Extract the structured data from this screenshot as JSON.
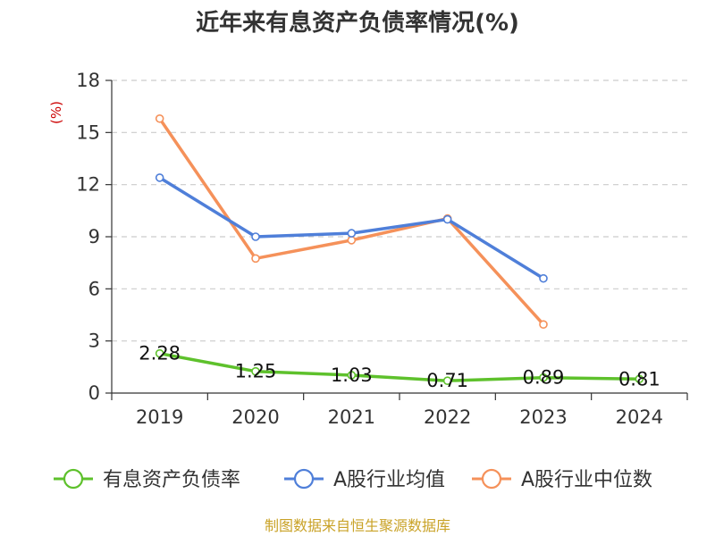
{
  "chart_data": {
    "type": "line",
    "title": "近年来有息资产负债率情况(%)",
    "ylabel": "(%)",
    "categories": [
      "2019",
      "2020",
      "2021",
      "2022",
      "2023",
      "2024"
    ],
    "ylim": [
      0,
      18
    ],
    "yticks": [
      0,
      3,
      6,
      9,
      12,
      15,
      18
    ],
    "grid": true,
    "legend_position": "bottom",
    "series": [
      {
        "name": "有息资产负债率",
        "color": "#5ec12c",
        "values": [
          2.28,
          1.25,
          1.03,
          0.71,
          0.89,
          0.81
        ],
        "labels": [
          "2.28",
          "1.25",
          "1.03",
          "0.71",
          "0.89",
          "0.81"
        ]
      },
      {
        "name": "A股行业均值",
        "color": "#4f7fd9",
        "values": [
          12.4,
          9.0,
          9.2,
          10.0,
          6.6,
          null
        ]
      },
      {
        "name": "A股行业中位数",
        "color": "#f5915a",
        "values": [
          15.8,
          7.75,
          8.8,
          10.05,
          3.95,
          null
        ]
      }
    ],
    "source": "制图数据来自恒生聚源数据库"
  }
}
